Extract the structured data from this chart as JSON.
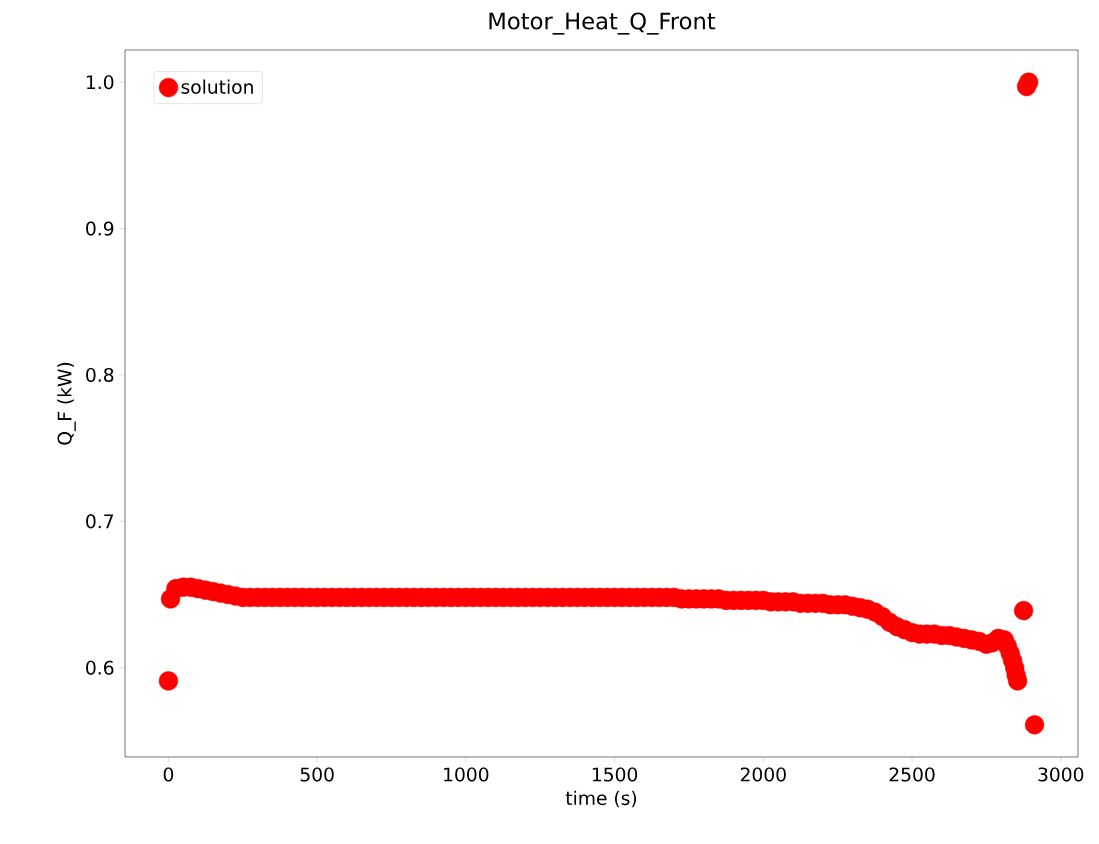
{
  "chart_data": {
    "type": "scatter",
    "title": "Motor_Heat_Q_Front",
    "xlabel": "time (s)",
    "ylabel": "Q_F (kW)",
    "series": [
      {
        "name": "solution",
        "color": "#ff0000",
        "x": [
          0,
          7,
          25,
          50,
          75,
          100,
          125,
          150,
          175,
          200,
          225,
          250,
          275,
          300,
          325,
          350,
          375,
          400,
          425,
          450,
          475,
          500,
          525,
          550,
          575,
          600,
          625,
          650,
          675,
          700,
          725,
          750,
          775,
          800,
          825,
          850,
          875,
          900,
          925,
          950,
          975,
          1000,
          1025,
          1050,
          1075,
          1100,
          1125,
          1150,
          1175,
          1200,
          1225,
          1250,
          1275,
          1300,
          1325,
          1350,
          1375,
          1400,
          1425,
          1450,
          1475,
          1500,
          1525,
          1550,
          1575,
          1600,
          1625,
          1650,
          1675,
          1700,
          1725,
          1750,
          1775,
          1800,
          1825,
          1850,
          1875,
          1900,
          1925,
          1950,
          1975,
          2000,
          2025,
          2050,
          2075,
          2100,
          2125,
          2150,
          2175,
          2200,
          2225,
          2250,
          2275,
          2300,
          2325,
          2350,
          2375,
          2400,
          2425,
          2450,
          2475,
          2500,
          2525,
          2550,
          2575,
          2600,
          2625,
          2650,
          2675,
          2700,
          2725,
          2750,
          2770,
          2790,
          2810,
          2820,
          2830,
          2838,
          2845,
          2850,
          2855,
          2875,
          2885,
          2892,
          2912
        ],
        "values": [
          0.591,
          0.647,
          0.654,
          0.655,
          0.655,
          0.654,
          0.653,
          0.652,
          0.651,
          0.65,
          0.649,
          0.648,
          0.648,
          0.648,
          0.648,
          0.648,
          0.648,
          0.648,
          0.648,
          0.648,
          0.648,
          0.648,
          0.648,
          0.648,
          0.648,
          0.648,
          0.648,
          0.648,
          0.648,
          0.648,
          0.648,
          0.648,
          0.648,
          0.648,
          0.648,
          0.648,
          0.648,
          0.648,
          0.648,
          0.648,
          0.648,
          0.648,
          0.648,
          0.648,
          0.648,
          0.648,
          0.648,
          0.648,
          0.648,
          0.648,
          0.648,
          0.648,
          0.648,
          0.648,
          0.648,
          0.648,
          0.648,
          0.648,
          0.648,
          0.648,
          0.648,
          0.648,
          0.648,
          0.648,
          0.648,
          0.648,
          0.648,
          0.648,
          0.648,
          0.648,
          0.647,
          0.647,
          0.647,
          0.647,
          0.647,
          0.647,
          0.646,
          0.646,
          0.646,
          0.646,
          0.646,
          0.646,
          0.645,
          0.645,
          0.645,
          0.645,
          0.644,
          0.644,
          0.644,
          0.644,
          0.643,
          0.643,
          0.643,
          0.642,
          0.641,
          0.64,
          0.638,
          0.635,
          0.631,
          0.628,
          0.626,
          0.624,
          0.623,
          0.623,
          0.623,
          0.622,
          0.622,
          0.621,
          0.62,
          0.619,
          0.618,
          0.616,
          0.617,
          0.62,
          0.619,
          0.615,
          0.61,
          0.605,
          0.6,
          0.595,
          0.591,
          0.639,
          0.997,
          1.0,
          0.561
        ]
      }
    ],
    "xlim": [
      -146,
      3058
    ],
    "ylim": [
      0.539,
      1.022
    ],
    "xticks": [
      0,
      500,
      1000,
      1500,
      2000,
      2500,
      3000
    ],
    "yticks": [
      0.6,
      0.7,
      0.8,
      0.9,
      {
        "value": 1.0,
        "label": "1.0"
      }
    ],
    "legend": "top left",
    "marker": "circle",
    "grid": false
  }
}
